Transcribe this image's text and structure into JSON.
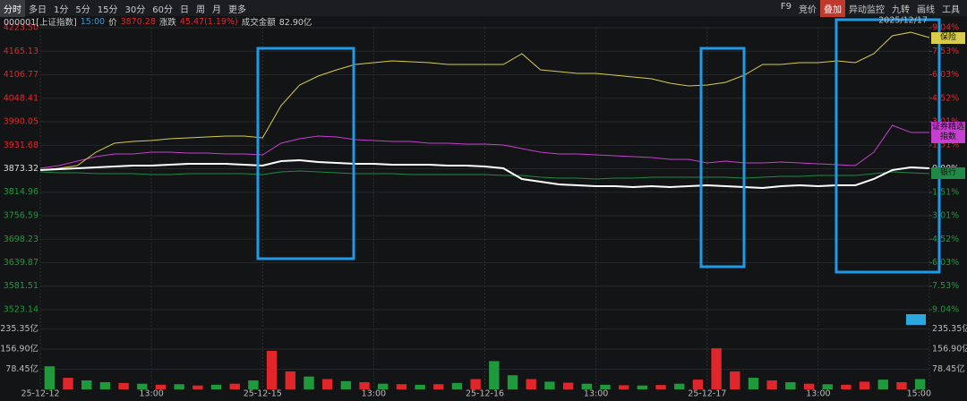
{
  "toolbar": {
    "left": [
      "分时",
      "多日",
      "1分",
      "5分",
      "15分",
      "30分",
      "60分",
      "日",
      "周",
      "月",
      "更多"
    ],
    "right": [
      "F9",
      "竞价",
      "叠加",
      "异动监控",
      "九转",
      "画线",
      "工具"
    ]
  },
  "info": {
    "time": "15:00",
    "price_label": "价",
    "price": 3870.28,
    "change_label": "涨跌",
    "change": "45.47(1.19%)",
    "amount_label": "成交金额",
    "amount": "82.90亿"
  },
  "date": "2025/12/17",
  "chart_data": [
    {
      "type": "line",
      "x": [
        0,
        20,
        40,
        60,
        80,
        100,
        120,
        140,
        160,
        180,
        200,
        220,
        240,
        260,
        280,
        300,
        320,
        340,
        360,
        380,
        400,
        420,
        440,
        460,
        480,
        500,
        520,
        540,
        560,
        580,
        600,
        620,
        640,
        660,
        680,
        700,
        720,
        740,
        760,
        780,
        800,
        820,
        840,
        860,
        880,
        900,
        920,
        940,
        960
      ],
      "xlim": [
        0,
        960
      ],
      "xticks": [
        {
          "value": 0,
          "label": "25-12-12"
        },
        {
          "value": 120,
          "label": "13:00"
        },
        {
          "value": 240,
          "label": "25-12-15"
        },
        {
          "value": 360,
          "label": "13:00"
        },
        {
          "value": 480,
          "label": "25-12-16"
        },
        {
          "value": 600,
          "label": "13:00"
        },
        {
          "value": 720,
          "label": "25-12-17"
        },
        {
          "value": 840,
          "label": "13:00"
        },
        {
          "value": 960,
          "label": "15:00"
        }
      ],
      "ylim": [
        3523.14,
        4223.5
      ],
      "yticks": [
        {
          "value": 4223.5,
          "label": "4223.50"
        },
        4165.13,
        4106.77,
        4048.41,
        3990.05,
        3931.68,
        3873.32,
        3814.96,
        3756.59,
        3698.23,
        3639.87,
        3581.51,
        3523.14
      ],
      "y2lim": [
        -9.04,
        9.04
      ],
      "y2ticks": [
        {
          "value": 9.04,
          "label": "9.04%"
        },
        {
          "value": 7.53,
          "label": "7.53%"
        },
        {
          "value": 6.03,
          "label": "6.03%"
        },
        {
          "value": 4.52,
          "label": "4.52%"
        },
        {
          "value": 3.01,
          "label": "3.01%"
        },
        {
          "value": 1.51,
          "label": "1.51%"
        },
        {
          "value": 0,
          "label": "0.00%"
        },
        {
          "value": -1.51,
          "label": "1.51%"
        },
        {
          "value": -3.01,
          "label": "3.01%"
        },
        {
          "value": -4.52,
          "label": "4.52%"
        },
        {
          "value": -6.03,
          "label": "6.03%"
        },
        {
          "value": -7.53,
          "label": "7.53%"
        },
        {
          "value": -9.04,
          "label": "9.04%"
        }
      ],
      "grid": true,
      "series": [
        {
          "name": "000001[上证指数]",
          "color": "#ffffff",
          "values": [
            3870.0,
            3872.2,
            3874.4,
            3876.7,
            3878.9,
            3881.1,
            3881.1,
            3883.3,
            3885.5,
            3885.5,
            3885.5,
            3883.3,
            3881.1,
            3892.2,
            3894.4,
            3890.0,
            3887.8,
            3885.5,
            3885.5,
            3883.3,
            3883.3,
            3883.3,
            3881.1,
            3881.1,
            3878.9,
            3874.4,
            3847.7,
            3841.1,
            3834.4,
            3832.2,
            3830.0,
            3830.0,
            3827.7,
            3830.0,
            3827.7,
            3830.0,
            3832.2,
            3830.0,
            3827.7,
            3825.5,
            3830.0,
            3832.2,
            3830.0,
            3832.2,
            3832.2,
            3847.7,
            3870.0,
            3876.7,
            3874.4
          ]
        },
        {
          "name": "保险",
          "color": "#d8cc4a",
          "values": [
            3870.0,
            3874.4,
            3881.1,
            3914.5,
            3936.7,
            3941.1,
            3943.4,
            3947.8,
            3950.0,
            3952.2,
            3954.5,
            3954.5,
            3950.0,
            4030.1,
            4081.2,
            4103.4,
            4119.0,
            4132.3,
            4136.8,
            4141.2,
            4139.0,
            4136.8,
            4132.3,
            4132.3,
            4132.3,
            4132.3,
            4159.0,
            4119.0,
            4114.6,
            4110.1,
            4110.1,
            4105.7,
            4101.2,
            4096.8,
            4085.6,
            4079.0,
            4081.2,
            4087.9,
            4105.7,
            4132.3,
            4132.3,
            4136.8,
            4136.8,
            4141.2,
            4136.8,
            4159.0,
            4203.5,
            4212.4,
            4199.0
          ]
        },
        {
          "name": "证券精选指数",
          "color": "#c63fd0",
          "values": [
            3874.4,
            3881.1,
            3892.2,
            3903.3,
            3910.0,
            3910.0,
            3914.5,
            3914.5,
            3912.2,
            3912.2,
            3910.0,
            3910.0,
            3907.8,
            3936.7,
            3947.8,
            3954.5,
            3952.2,
            3945.6,
            3943.4,
            3941.1,
            3941.1,
            3936.7,
            3936.7,
            3934.5,
            3934.5,
            3932.2,
            3923.4,
            3914.5,
            3910.0,
            3910.0,
            3907.8,
            3905.6,
            3903.3,
            3901.1,
            3896.7,
            3896.7,
            3887.8,
            3892.2,
            3887.8,
            3887.8,
            3890.0,
            3887.8,
            3885.5,
            3883.3,
            3881.1,
            3914.5,
            3981.1,
            3963.4,
            3963.4
          ]
        },
        {
          "name": "银行",
          "color": "#1f8a45",
          "values": [
            3865.5,
            3863.3,
            3863.3,
            3861.1,
            3861.1,
            3861.1,
            3858.9,
            3858.9,
            3861.1,
            3861.1,
            3861.1,
            3861.1,
            3858.9,
            3865.5,
            3867.8,
            3865.5,
            3863.3,
            3861.1,
            3861.1,
            3861.1,
            3858.9,
            3858.9,
            3858.9,
            3858.9,
            3858.9,
            3856.6,
            3856.6,
            3852.2,
            3850.0,
            3850.0,
            3847.7,
            3850.0,
            3850.0,
            3852.2,
            3852.2,
            3852.2,
            3852.2,
            3852.2,
            3850.0,
            3852.2,
            3854.4,
            3854.4,
            3856.6,
            3856.6,
            3856.6,
            3861.1,
            3865.5,
            3863.3,
            3861.1
          ]
        }
      ]
    },
    {
      "type": "bar",
      "x": [
        10,
        30,
        50,
        70,
        90,
        110,
        130,
        150,
        170,
        190,
        210,
        230,
        250,
        270,
        290,
        310,
        330,
        350,
        370,
        390,
        410,
        430,
        450,
        470,
        490,
        510,
        530,
        550,
        570,
        590,
        610,
        630,
        650,
        670,
        690,
        710,
        730,
        750,
        770,
        790,
        810,
        830,
        850,
        870,
        890,
        910,
        930,
        950
      ],
      "xlim": [
        0,
        960
      ],
      "ylim": [
        0,
        313.8
      ],
      "yticks": [
        {
          "value": 235.35,
          "label": "235.35亿"
        },
        {
          "value": 156.9,
          "label": "156.90亿"
        },
        {
          "value": 78.45,
          "label": "78.45亿"
        }
      ],
      "values": [
        90,
        45,
        35,
        28,
        25,
        22,
        18,
        20,
        15,
        18,
        22,
        35,
        150,
        70,
        50,
        40,
        32,
        28,
        22,
        20,
        18,
        20,
        25,
        40,
        110,
        55,
        40,
        30,
        26,
        22,
        18,
        16,
        15,
        17,
        22,
        38,
        160,
        70,
        45,
        35,
        28,
        22,
        20,
        18,
        30,
        38,
        28,
        40
      ],
      "colors": [
        "#1e9a3c",
        "#e0262b",
        "#1e9a3c",
        "#1e9a3c",
        "#e0262b",
        "#1e9a3c",
        "#e0262b",
        "#1e9a3c",
        "#e0262b",
        "#1e9a3c",
        "#e0262b",
        "#1e9a3c",
        "#e0262b",
        "#e0262b",
        "#1e9a3c",
        "#e0262b",
        "#1e9a3c",
        "#e0262b",
        "#1e9a3c",
        "#e0262b",
        "#1e9a3c",
        "#e0262b",
        "#1e9a3c",
        "#e0262b",
        "#1e9a3c",
        "#1e9a3c",
        "#e0262b",
        "#1e9a3c",
        "#e0262b",
        "#1e9a3c",
        "#1e9a3c",
        "#e0262b",
        "#1e9a3c",
        "#e0262b",
        "#1e9a3c",
        "#e0262b",
        "#e0262b",
        "#e0262b",
        "#1e9a3c",
        "#e0262b",
        "#1e9a3c",
        "#e0262b",
        "#1e9a3c",
        "#e0262b",
        "#e0262b",
        "#1e9a3c",
        "#e0262b",
        "#1e9a3c"
      ]
    }
  ]
}
